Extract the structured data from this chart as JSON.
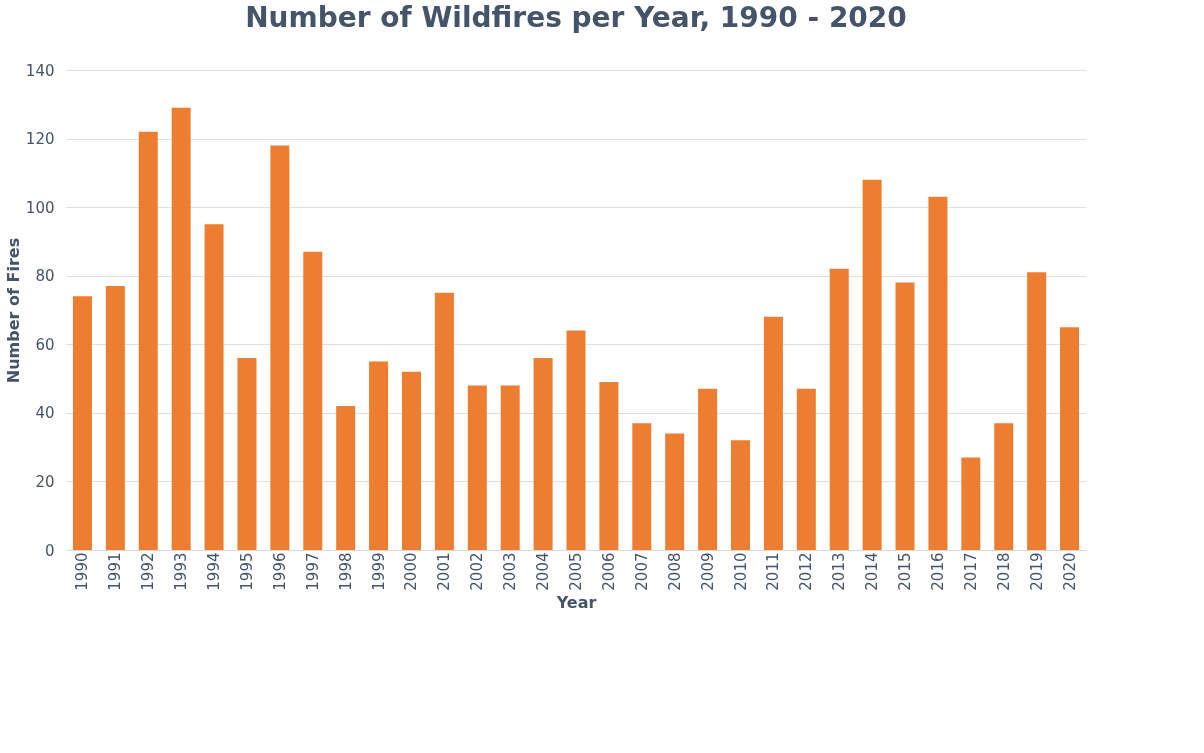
{
  "chart_data": {
    "type": "bar",
    "title": "Number of Wildfires per Year, 1990 - 2020",
    "xlabel": "Year",
    "ylabel": "Number of Fires",
    "categories": [
      "1990",
      "1991",
      "1992",
      "1993",
      "1994",
      "1995",
      "1996",
      "1997",
      "1998",
      "1999",
      "2000",
      "2001",
      "2002",
      "2003",
      "2004",
      "2005",
      "2006",
      "2007",
      "2008",
      "2009",
      "2010",
      "2011",
      "2012",
      "2013",
      "2014",
      "2015",
      "2016",
      "2017",
      "2018",
      "2019",
      "2020"
    ],
    "values": [
      74,
      77,
      122,
      129,
      95,
      56,
      118,
      87,
      42,
      55,
      52,
      75,
      48,
      48,
      56,
      64,
      49,
      37,
      34,
      47,
      32,
      68,
      47,
      82,
      108,
      78,
      103,
      27,
      37,
      81,
      65
    ],
    "color": "#ed7d31",
    "ylim": [
      0,
      140
    ],
    "yticks": [
      0,
      20,
      40,
      60,
      80,
      100,
      120,
      140
    ],
    "grid": "y"
  }
}
